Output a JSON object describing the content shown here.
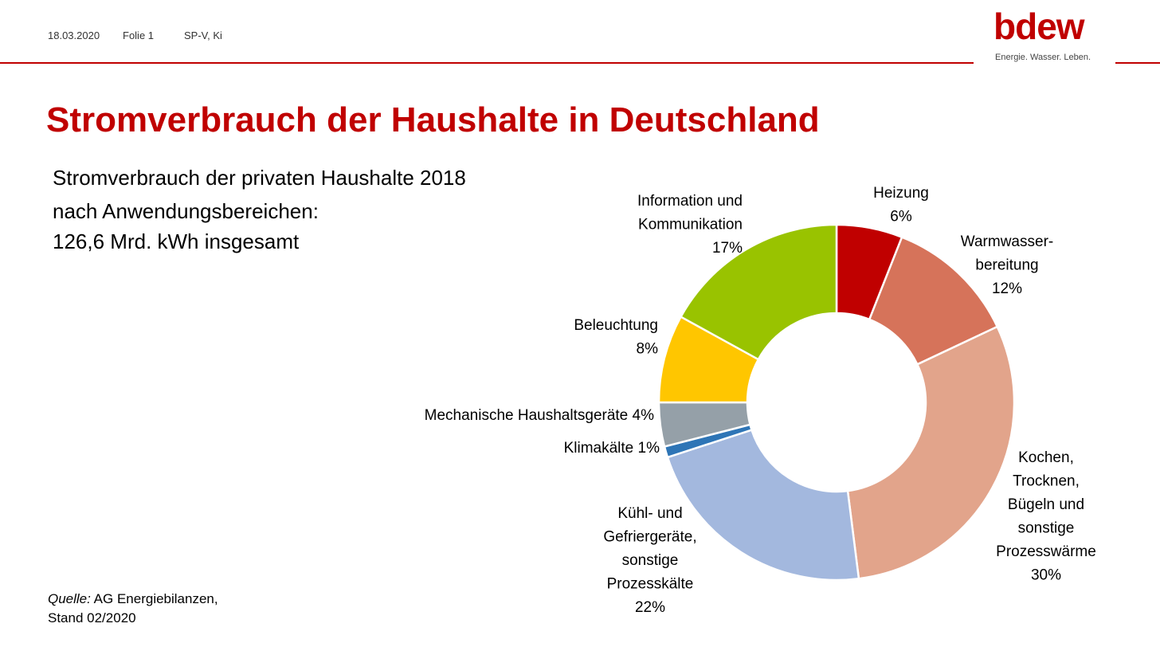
{
  "header": {
    "date": "18.03.2020",
    "slide": "Folie 1",
    "author": "SP-V, Ki"
  },
  "logo": {
    "word": "bdew",
    "tagline": "Energie. Wasser. Leben."
  },
  "page_title": "Stromverbrauch der Haushalte in Deutschland",
  "subtitle_lines": [
    "Stromverbrauch der privaten Haushalte 2018",
    "nach Anwendungsbereichen:",
    "126,6 Mrd. kWh insgesamt"
  ],
  "source": {
    "prefix": "Quelle:",
    "text": "AG Energiebilanzen,",
    "line2": "Stand 02/2020"
  },
  "colors": {
    "brand": "#c00000",
    "rule": "#c00000"
  },
  "chart_data": {
    "type": "pie",
    "donut": true,
    "unit": "%",
    "slices": [
      {
        "label_lines": [
          "Heizung"
        ],
        "value_label": "6%",
        "value": 6,
        "color": "#c00000"
      },
      {
        "label_lines": [
          "Warmwasser-",
          "bereitung"
        ],
        "value_label": "12%",
        "value": 12,
        "color": "#d6735a"
      },
      {
        "label_lines": [
          "Kochen,",
          "Trocknen,",
          "Bügeln und",
          "sonstige",
          "Prozesswärme"
        ],
        "value_label": "30%",
        "value": 30,
        "color": "#e2a48b"
      },
      {
        "label_lines": [
          "Kühl- und",
          "Gefriergeräte,",
          "sonstige",
          "Prozesskälte"
        ],
        "value_label": "22%",
        "value": 22,
        "color": "#a3b8de"
      },
      {
        "label_lines": [
          "Klimakälte 1%"
        ],
        "value_label": "",
        "value": 1,
        "color": "#2e75b6"
      },
      {
        "label_lines": [
          "Mechanische Haushaltsgeräte 4%"
        ],
        "value_label": "",
        "value": 4,
        "color": "#95a0a8"
      },
      {
        "label_lines": [
          "Beleuchtung"
        ],
        "value_label": "8%",
        "value": 8,
        "color": "#ffc600"
      },
      {
        "label_lines": [
          "Information und",
          "Kommunikation"
        ],
        "value_label": "17%",
        "value": 17,
        "color": "#99c300"
      }
    ]
  }
}
